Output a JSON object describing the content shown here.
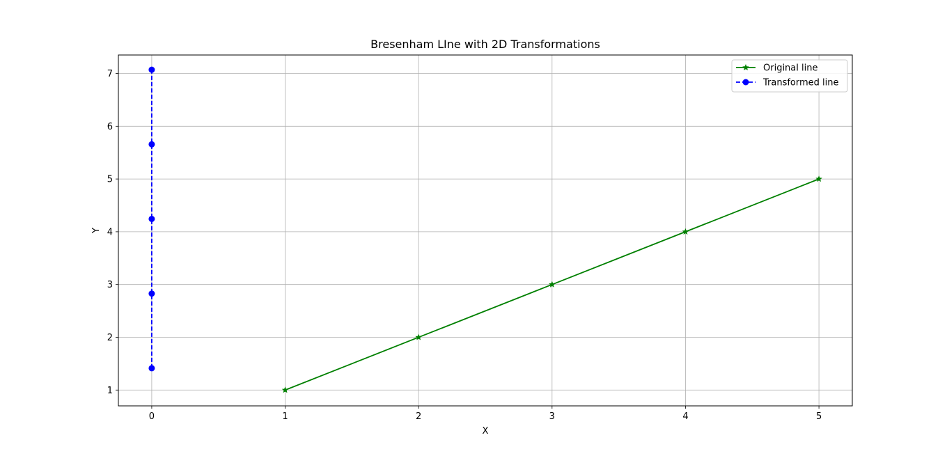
{
  "chart_data": {
    "type": "line",
    "title": "Bresenham LIne with 2D Transformations",
    "xlabel": "X",
    "ylabel": "Y",
    "xlim": [
      -0.25,
      5.25
    ],
    "ylim": [
      0.7,
      7.35
    ],
    "xticks": [
      0,
      1,
      2,
      3,
      4,
      5
    ],
    "yticks": [
      1,
      2,
      3,
      4,
      5,
      6,
      7
    ],
    "grid": true,
    "legend_position": "top-right",
    "series": [
      {
        "name": "Original line",
        "color": "#008000",
        "line_style": "solid",
        "marker": "star",
        "x": [
          1,
          2,
          3,
          4,
          5
        ],
        "y": [
          1,
          2,
          3,
          4,
          5
        ]
      },
      {
        "name": "Transformed line",
        "color": "#0000ff",
        "line_style": "dashed",
        "marker": "circle",
        "x": [
          0,
          0,
          0,
          0,
          0
        ],
        "y": [
          1.414,
          2.828,
          4.243,
          5.657,
          7.071
        ]
      }
    ]
  }
}
